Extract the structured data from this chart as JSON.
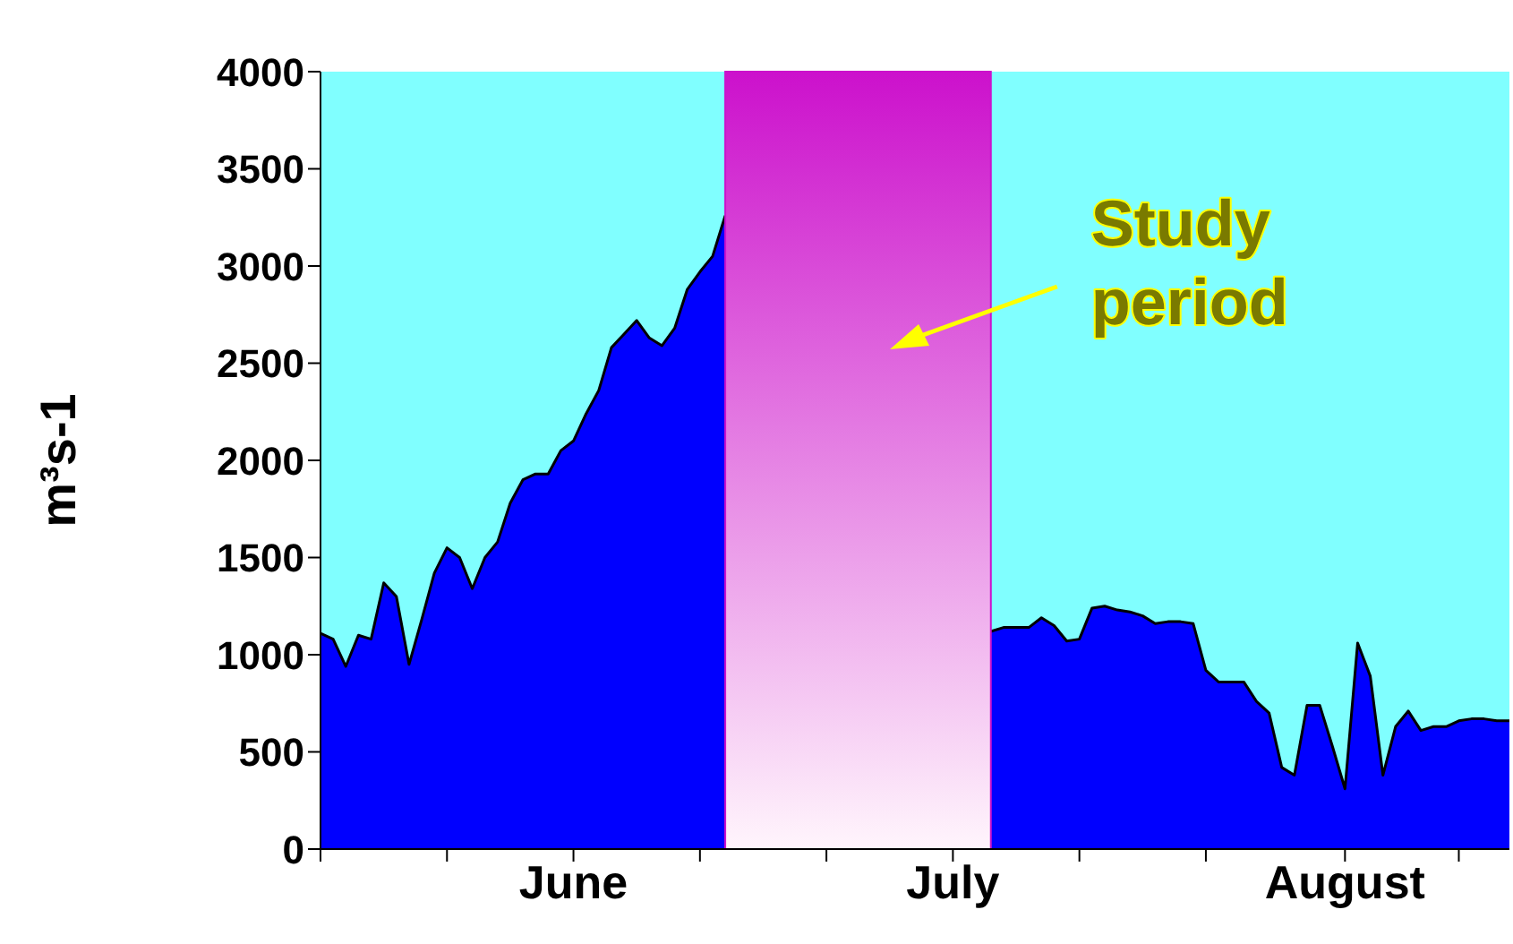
{
  "chart_data": {
    "type": "area",
    "ylabel": "m³s-1",
    "x": [
      "--05-12",
      "--05-13",
      "--05-14",
      "--05-15",
      "--05-16",
      "--05-17",
      "--05-18",
      "--05-19",
      "--05-20",
      "--05-21",
      "--05-22",
      "--05-23",
      "--05-24",
      "--05-25",
      "--05-26",
      "--05-27",
      "--05-28",
      "--05-29",
      "--05-30",
      "--05-31",
      "--06-01",
      "--06-02",
      "--06-03",
      "--06-04",
      "--06-05",
      "--06-06",
      "--06-07",
      "--06-08",
      "--06-09",
      "--06-10",
      "--06-11",
      "--06-12",
      "--06-13",
      "--06-14",
      "--06-15",
      "--06-16",
      "--06-17",
      "--06-18",
      "--06-19",
      "--06-20",
      "--06-21",
      "--06-22",
      "--06-23",
      "--06-24",
      "--06-25",
      "--06-26",
      "--06-27",
      "--06-28",
      "--06-29",
      "--06-30",
      "--07-01",
      "--07-02",
      "--07-03",
      "--07-04",
      "--07-05",
      "--07-06",
      "--07-07",
      "--07-08",
      "--07-09",
      "--07-10",
      "--07-11",
      "--07-12",
      "--07-13",
      "--07-14",
      "--07-15",
      "--07-16",
      "--07-17",
      "--07-18",
      "--07-19",
      "--07-20",
      "--07-21",
      "--07-22",
      "--07-23",
      "--07-24",
      "--07-25",
      "--07-26",
      "--07-27",
      "--07-28",
      "--07-29",
      "--07-30",
      "--07-31",
      "--08-01",
      "--08-02",
      "--08-03",
      "--08-04",
      "--08-05",
      "--08-06",
      "--08-07",
      "--08-08",
      "--08-09",
      "--08-10",
      "--08-11",
      "--08-12",
      "--08-13",
      "--08-14"
    ],
    "series": [
      {
        "color": "#0000ff",
        "values": [
          1110,
          1080,
          940,
          1100,
          1080,
          1370,
          1300,
          950,
          1180,
          1420,
          1550,
          1500,
          1340,
          1500,
          1580,
          1780,
          1900,
          1930,
          1930,
          2050,
          2100,
          2240,
          2360,
          2580,
          2650,
          2720,
          2630,
          2590,
          2680,
          2880,
          2970,
          3050,
          3260,
          null,
          null,
          null,
          null,
          null,
          null,
          null,
          null,
          null,
          null,
          null,
          null,
          null,
          null,
          null,
          null,
          null,
          null,
          null,
          null,
          1120,
          1140,
          1140,
          1140,
          1190,
          1150,
          1070,
          1080,
          1240,
          1250,
          1230,
          1220,
          1200,
          1160,
          1170,
          1170,
          1160,
          920,
          860,
          860,
          860,
          760,
          700,
          420,
          380,
          740,
          740,
          530,
          310,
          1060,
          890,
          380,
          630,
          710,
          610,
          630,
          630,
          660,
          670,
          670,
          660,
          660
        ]
      }
    ],
    "xlim": [
      "--05-12",
      "--08-14"
    ],
    "xticks": [
      {
        "value": "--05-12",
        "label": null
      },
      {
        "value": "--05-22",
        "label": null
      },
      {
        "value": "--06-01",
        "label": "June"
      },
      {
        "value": "--06-11",
        "label": null
      },
      {
        "value": "--06-21",
        "label": null
      },
      {
        "value": "--07-01",
        "label": "July"
      },
      {
        "value": "--07-11",
        "label": null
      },
      {
        "value": "--07-21",
        "label": null
      },
      {
        "value": "--08-01",
        "label": "August"
      },
      {
        "value": "--08-10",
        "label": null
      }
    ],
    "ylim": [
      0,
      4000
    ],
    "yticks": [
      0,
      500,
      1000,
      1500,
      2000,
      2500,
      3000,
      3500,
      4000
    ],
    "bands": [
      {
        "axis": "x",
        "from": "--06-13",
        "to": "--07-04",
        "label": "Study period",
        "color": "#cc11cc"
      }
    ],
    "grid": false,
    "legend": false
  }
}
